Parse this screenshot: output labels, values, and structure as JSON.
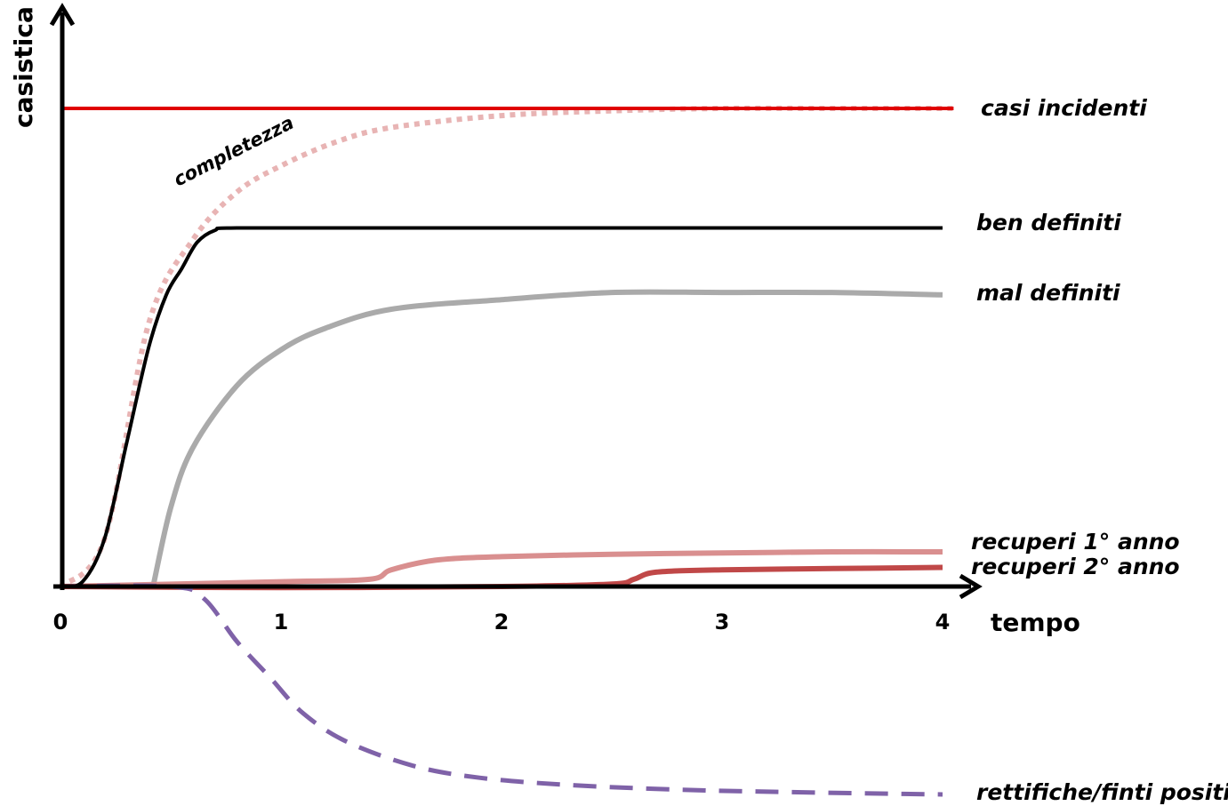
{
  "chart_data": {
    "type": "line",
    "title": "",
    "xlabel": "tempo",
    "ylabel": "casistica",
    "xlim": [
      0,
      4
    ],
    "ylim": [
      -1,
      2.2
    ],
    "xticks": [
      "0",
      "1",
      "2",
      "3",
      "4"
    ],
    "grid": false,
    "annotation": "completezza",
    "series": [
      {
        "name": "casi incidenti",
        "color": "#e00000",
        "style": "solid",
        "x": [
          0,
          4.05
        ],
        "y": [
          2.0,
          2.0
        ]
      },
      {
        "name": "completezza",
        "color": "#e8b4b4",
        "style": "dotted",
        "x": [
          0,
          0.2,
          0.4,
          0.6,
          0.8,
          1.0,
          1.25,
          1.5,
          2.0,
          2.5,
          3.0,
          3.5,
          4.0,
          4.05
        ],
        "y": [
          0,
          0.2,
          1.1,
          1.45,
          1.65,
          1.76,
          1.86,
          1.92,
          1.97,
          1.99,
          2.0,
          2.0,
          2.0,
          2.0
        ]
      },
      {
        "name": "ben definiti",
        "color": "#000000",
        "style": "solid",
        "x": [
          0,
          0.1,
          0.2,
          0.3,
          0.4,
          0.48,
          0.55,
          0.62,
          0.7,
          0.8,
          1.5,
          2.5,
          4.0
        ],
        "y": [
          0,
          0.02,
          0.2,
          0.6,
          1.0,
          1.22,
          1.33,
          1.44,
          1.49,
          1.5,
          1.5,
          1.5,
          1.5
        ]
      },
      {
        "name": "mal definiti",
        "color": "#aaaaaa",
        "style": "solid",
        "x": [
          0.42,
          0.5,
          0.6,
          0.8,
          1.0,
          1.2,
          1.5,
          2.0,
          2.5,
          3.0,
          3.5,
          4.0
        ],
        "y": [
          0.0,
          0.33,
          0.58,
          0.84,
          0.99,
          1.08,
          1.16,
          1.2,
          1.23,
          1.23,
          1.23,
          1.22
        ]
      },
      {
        "name": "recuperi 1° anno",
        "color": "#d98f8f",
        "style": "solid",
        "x": [
          0,
          1.0,
          1.4,
          1.5,
          1.7,
          2.0,
          2.5,
          3.0,
          3.5,
          4.0
        ],
        "y": [
          0,
          0.02,
          0.03,
          0.07,
          0.11,
          0.125,
          0.135,
          0.14,
          0.145,
          0.145
        ]
      },
      {
        "name": "recuperi 2° anno",
        "color": "#c04848",
        "style": "solid",
        "x": [
          0,
          1.0,
          2.0,
          2.5,
          2.6,
          2.7,
          3.0,
          3.5,
          4.0
        ],
        "y": [
          0,
          -0.005,
          0.0,
          0.01,
          0.03,
          0.06,
          0.07,
          0.075,
          0.08
        ]
      },
      {
        "name": "rettifiche/finti positivi",
        "color": "#7f62a8",
        "style": "dashed",
        "x": [
          0,
          0.5,
          0.65,
          0.8,
          0.95,
          1.1,
          1.3,
          1.6,
          1.9,
          2.3,
          2.8,
          3.3,
          4.0
        ],
        "y": [
          0,
          0.0,
          -0.05,
          -0.23,
          -0.38,
          -0.53,
          -0.65,
          -0.75,
          -0.8,
          -0.83,
          -0.85,
          -0.86,
          -0.87
        ]
      }
    ]
  }
}
